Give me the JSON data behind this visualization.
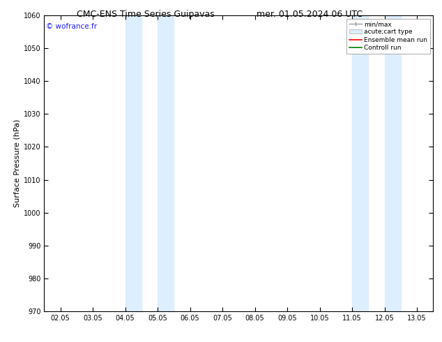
{
  "title_left": "CMC-ENS Time Series Guipavas",
  "title_right": "mer. 01.05.2024 06 UTC",
  "ylabel": "Surface Pressure (hPa)",
  "ylim": [
    970,
    1060
  ],
  "yticks": [
    970,
    980,
    990,
    1000,
    1010,
    1020,
    1030,
    1040,
    1050,
    1060
  ],
  "xlim_dates": [
    "02.05",
    "03.05",
    "04.05",
    "05.05",
    "06.05",
    "07.05",
    "08.05",
    "09.05",
    "10.05",
    "11.05",
    "12.05",
    "13.05"
  ],
  "xtick_positions": [
    0,
    1,
    2,
    3,
    4,
    5,
    6,
    7,
    8,
    9,
    10,
    11
  ],
  "shaded_bands": [
    {
      "x_start": 2.0,
      "x_end": 2.5,
      "color": "#ddeeff"
    },
    {
      "x_start": 3.0,
      "x_end": 3.5,
      "color": "#ddeeff"
    },
    {
      "x_start": 9.0,
      "x_end": 9.5,
      "color": "#ddeeff"
    },
    {
      "x_start": 10.0,
      "x_end": 10.5,
      "color": "#ddeeff"
    }
  ],
  "watermark": "© wofrance.fr",
  "watermark_color": "#1a1aff",
  "legend_items": [
    {
      "label": "min/max",
      "color": "#999999"
    },
    {
      "label": "acute;cart type",
      "color": "#ddeeff"
    },
    {
      "label": "Ensemble mean run",
      "color": "red"
    },
    {
      "label": "Controll run",
      "color": "green"
    }
  ],
  "background_color": "#ffffff",
  "title_fontsize": 9,
  "tick_fontsize": 7,
  "ylabel_fontsize": 8
}
